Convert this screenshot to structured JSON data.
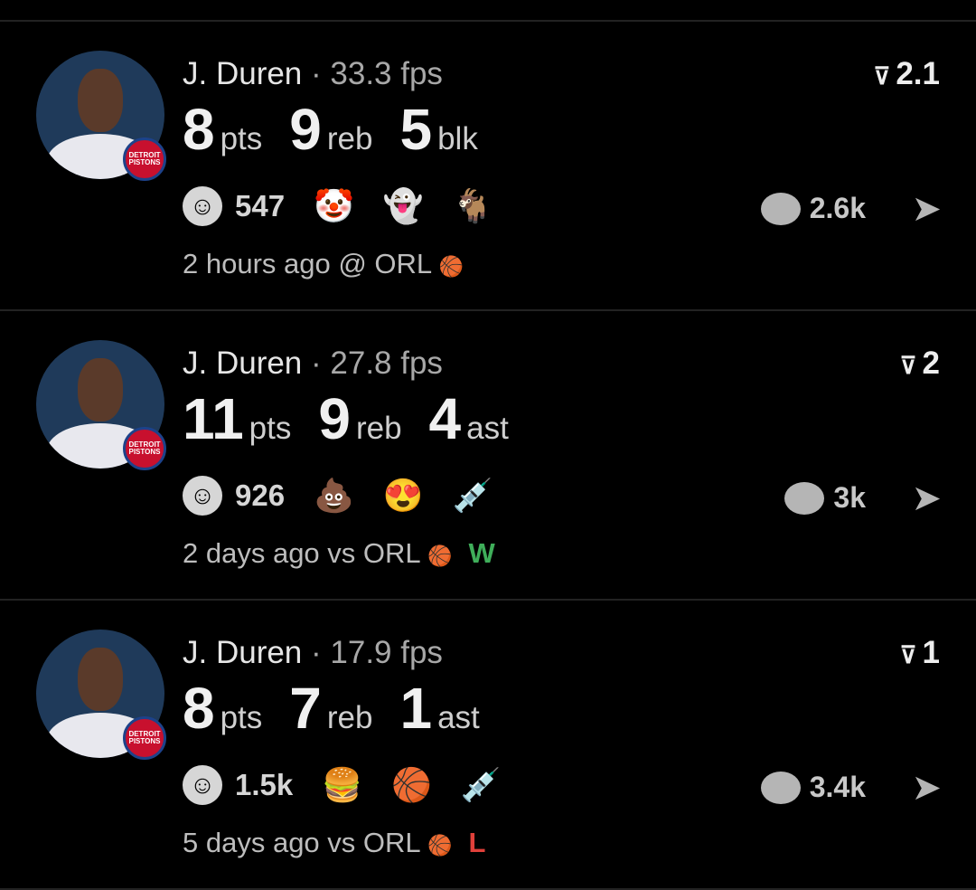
{
  "posts": [
    {
      "player": "J. Duren",
      "fps": "33.3 fps",
      "stats": [
        {
          "value": "8",
          "unit": "pts"
        },
        {
          "value": "9",
          "unit": "reb"
        },
        {
          "value": "5",
          "unit": "blk"
        }
      ],
      "reaction_count": "547",
      "emojis": [
        "🤡",
        "👻",
        "🐐"
      ],
      "vote": "2.1",
      "comments": "2.6k",
      "time": "2 hours ago @ ORL",
      "result": "",
      "result_color": ""
    },
    {
      "player": "J. Duren",
      "fps": "27.8 fps",
      "stats": [
        {
          "value": "11",
          "unit": "pts"
        },
        {
          "value": "9",
          "unit": "reb"
        },
        {
          "value": "4",
          "unit": "ast"
        }
      ],
      "reaction_count": "926",
      "emojis": [
        "💩",
        "😍",
        "💉"
      ],
      "vote": "2",
      "comments": "3k",
      "time": "2 days ago vs ORL",
      "result": "W",
      "result_color": "#3fae5a"
    },
    {
      "player": "J. Duren",
      "fps": "17.9 fps",
      "stats": [
        {
          "value": "8",
          "unit": "pts"
        },
        {
          "value": "7",
          "unit": "reb"
        },
        {
          "value": "1",
          "unit": "ast"
        }
      ],
      "reaction_count": "1.5k",
      "emojis": [
        "🍔",
        "🏀",
        "💉"
      ],
      "vote": "1",
      "comments": "3.4k",
      "time": "5 days ago vs ORL",
      "result": "L",
      "result_color": "#e0403a"
    }
  ],
  "team_badge": "DETROIT PISTONS",
  "separator": " · ",
  "team_logo": "🏀"
}
